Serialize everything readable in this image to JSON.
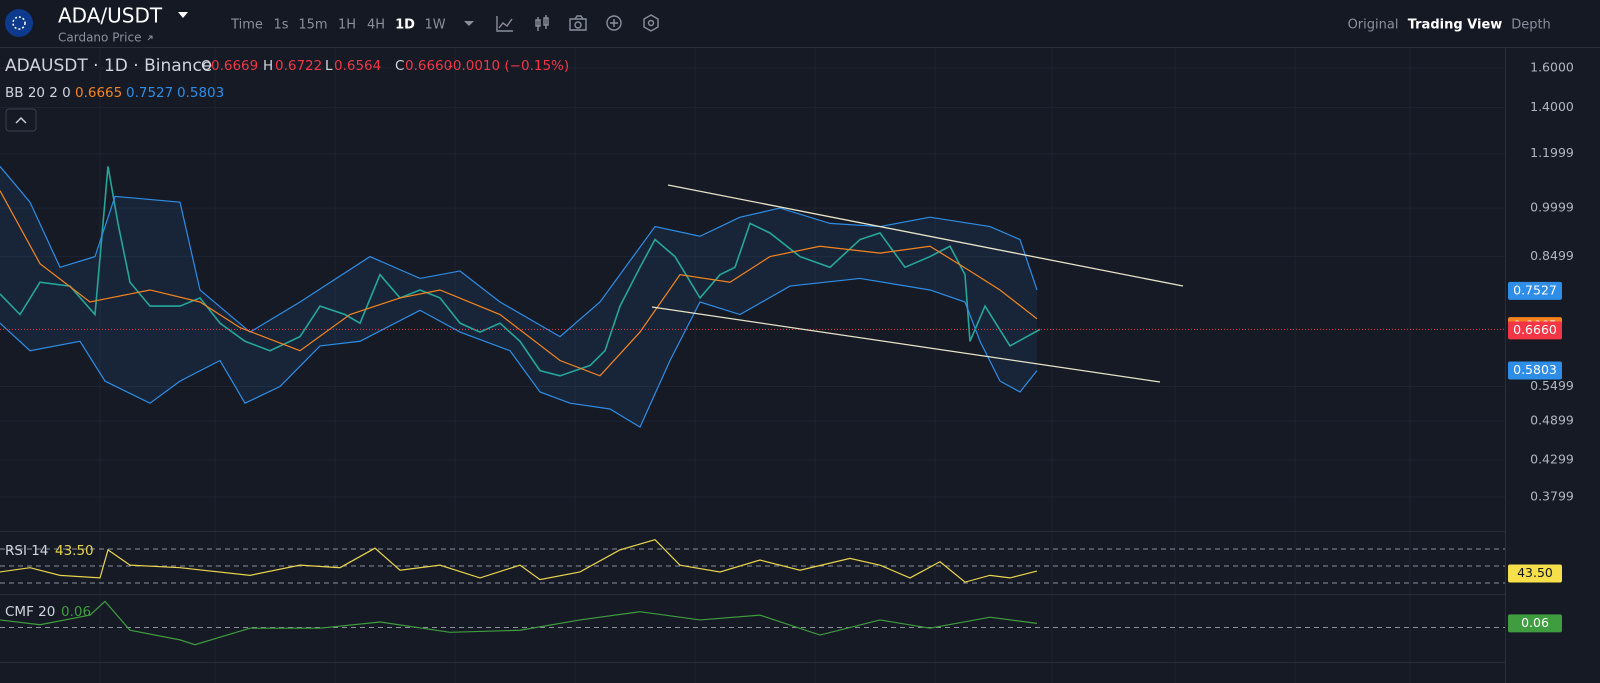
{
  "header": {
    "symbol": "ADA/USDT",
    "subtitle": "Cardano Price",
    "intervals": [
      "Time",
      "1s",
      "15m",
      "1H",
      "4H",
      "1D",
      "1W"
    ],
    "active_interval": "1D",
    "views": [
      "Original",
      "Trading View",
      "Depth"
    ],
    "active_view": "Trading View"
  },
  "legend": {
    "instrument": "ADAUSDT · 1D · Binance",
    "open_label": "O",
    "open": "0.6669",
    "high_label": "H",
    "high": "0.6722",
    "low_label": "L",
    "low": "0.6564",
    "close_label": "C",
    "close": "0.6660",
    "change": "-0.0010 (−0.15%)",
    "bb_label": "BB 20 2 0",
    "bb_middle": "0.6665",
    "bb_upper": "0.7527",
    "bb_lower": "0.5803",
    "rsi_value": "43.50",
    "cmf_value": "0.06"
  },
  "chart_data": [
    {
      "type": "line",
      "log_scale": true,
      "grid": true,
      "xlim": [
        0,
        150.5
      ],
      "ylim": [
        0.34,
        1.71
      ],
      "yticks": [
        {
          "value": 1.6,
          "label": "1.6000"
        },
        {
          "value": 1.4,
          "label": "1.4000"
        },
        {
          "value": 1.1999,
          "label": "1.1999"
        },
        {
          "value": 0.9999,
          "label": "0.9999"
        },
        {
          "value": 0.8499,
          "label": "0.8499"
        },
        {
          "value": 0.5499,
          "label": "0.5499"
        },
        {
          "value": 0.4899,
          "label": "0.4899"
        },
        {
          "value": 0.4299,
          "label": "0.4299"
        },
        {
          "value": 0.3799,
          "label": "0.3799"
        }
      ],
      "series": [
        {
          "color": "#26a69a",
          "x": [
            0,
            2,
            4,
            7,
            9.5,
            10.8,
            11.8,
            13,
            15,
            18,
            20,
            22,
            24.5,
            27,
            30,
            32,
            34.5,
            36,
            38,
            40,
            42,
            44,
            46,
            48,
            50,
            52,
            54,
            56,
            59,
            60.5,
            62,
            64,
            65.5,
            67.5,
            70,
            72,
            73.5,
            75,
            77,
            80,
            83,
            86,
            88,
            90.5,
            93,
            95,
            96.5,
            97,
            98.5,
            101,
            104
          ],
          "values": [
            0.75,
            0.7,
            0.78,
            0.77,
            0.7,
            1.15,
            0.95,
            0.78,
            0.72,
            0.72,
            0.74,
            0.68,
            0.64,
            0.62,
            0.65,
            0.72,
            0.7,
            0.68,
            0.8,
            0.74,
            0.76,
            0.74,
            0.68,
            0.66,
            0.68,
            0.64,
            0.58,
            0.57,
            0.59,
            0.62,
            0.72,
            0.82,
            0.9,
            0.85,
            0.74,
            0.8,
            0.82,
            0.95,
            0.92,
            0.85,
            0.82,
            0.9,
            0.92,
            0.82,
            0.85,
            0.88,
            0.8,
            0.64,
            0.72,
            0.63,
            0.666
          ]
        },
        {
          "color": "#2e8de6",
          "x": [
            0,
            3,
            6,
            9.5,
            11.5,
            18,
            20,
            25,
            30,
            37,
            42,
            46,
            50,
            56,
            60,
            65.5,
            70,
            74,
            78,
            83,
            88,
            93,
            99,
            102,
            103.7
          ],
          "values": [
            1.15,
            1.02,
            0.82,
            0.85,
            1.04,
            1.02,
            0.76,
            0.66,
            0.73,
            0.85,
            0.79,
            0.81,
            0.73,
            0.65,
            0.73,
            0.94,
            0.91,
            0.97,
            1.0,
            0.95,
            0.94,
            0.97,
            0.94,
            0.9,
            0.76
          ]
        },
        {
          "color": "#f5841f",
          "x": [
            0,
            4,
            9,
            11,
            15,
            20,
            24,
            30,
            35,
            40,
            44,
            50,
            56,
            60,
            64,
            68,
            73,
            77,
            82,
            88,
            93,
            97,
            100,
            103.7
          ],
          "values": [
            1.06,
            0.83,
            0.73,
            0.74,
            0.76,
            0.73,
            0.67,
            0.62,
            0.7,
            0.74,
            0.76,
            0.7,
            0.6,
            0.57,
            0.66,
            0.8,
            0.78,
            0.85,
            0.88,
            0.86,
            0.88,
            0.81,
            0.76,
            0.69
          ]
        },
        {
          "color": "#2e8de6",
          "x": [
            0,
            3,
            8,
            10.5,
            15,
            18,
            22,
            24.5,
            28,
            32,
            36,
            42,
            46,
            51,
            54,
            57,
            61,
            64,
            67,
            70,
            74,
            79,
            86,
            93,
            96.5,
            98,
            100,
            102,
            103.7
          ],
          "values": [
            0.68,
            0.62,
            0.64,
            0.56,
            0.52,
            0.56,
            0.6,
            0.52,
            0.55,
            0.63,
            0.64,
            0.71,
            0.66,
            0.62,
            0.54,
            0.52,
            0.51,
            0.48,
            0.6,
            0.73,
            0.7,
            0.77,
            0.79,
            0.76,
            0.73,
            0.64,
            0.56,
            0.54,
            0.58
          ]
        }
      ]
    },
    {
      "type": "line",
      "xlim": [
        0,
        150.5
      ],
      "ylim": [
        19.4,
        86.5
      ],
      "levels": [
        30,
        50,
        70
      ],
      "series": [
        {
          "name": "RSI 14",
          "color": "#e8d44d",
          "x": [
            0,
            3,
            6,
            10,
            10.8,
            13,
            18,
            25,
            30,
            34,
            37.5,
            40,
            44,
            48,
            52,
            54,
            58,
            62,
            65.5,
            68,
            72,
            76,
            80,
            85,
            88,
            91,
            94,
            96.5,
            99,
            101,
            103.7
          ],
          "values": [
            43,
            48,
            39,
            36,
            69,
            51,
            48,
            39,
            51,
            48,
            71,
            45,
            51,
            36,
            51,
            34,
            43,
            69,
            81,
            51,
            43,
            57,
            45,
            59,
            51,
            36,
            55,
            31,
            39,
            36,
            44
          ]
        }
      ]
    },
    {
      "type": "line",
      "xlim": [
        0,
        150.5
      ],
      "ylim": [
        -0.4,
        0.4
      ],
      "levels": [
        0
      ],
      "series": [
        {
          "name": "CMF 20",
          "color": "#3f9c3f",
          "x": [
            0,
            4,
            9,
            10.5,
            13,
            18,
            19.5,
            25,
            32,
            38,
            45,
            52,
            58,
            64,
            70,
            76,
            82,
            88,
            93,
            99,
            103.7
          ],
          "values": [
            0.11,
            0.04,
            0.18,
            0.38,
            -0.04,
            -0.18,
            -0.25,
            -0.01,
            -0.01,
            0.08,
            -0.07,
            -0.04,
            0.11,
            0.23,
            0.11,
            0.18,
            -0.11,
            0.11,
            -0.01,
            0.15,
            0.06
          ]
        }
      ]
    }
  ]
}
